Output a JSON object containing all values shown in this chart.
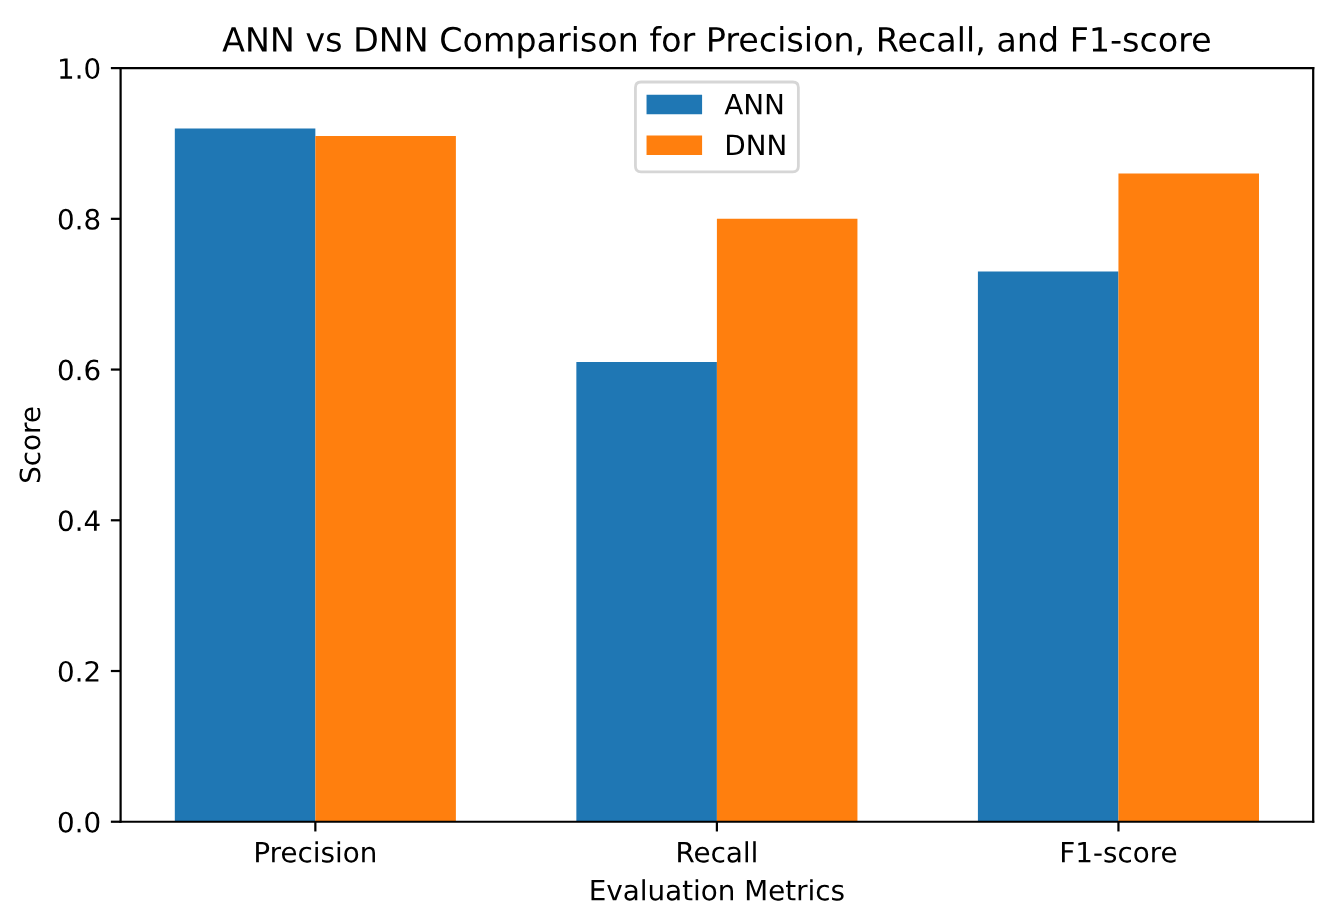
{
  "chart_data": {
    "type": "bar",
    "title": "ANN vs DNN Comparison for Precision, Recall, and F1-score",
    "xlabel": "Evaluation Metrics",
    "ylabel": "Score",
    "categories": [
      "Precision",
      "Recall",
      "F1-score"
    ],
    "series": [
      {
        "name": "ANN",
        "color": "#1f77b4",
        "values": [
          0.92,
          0.61,
          0.73
        ]
      },
      {
        "name": "DNN",
        "color": "#ff7f0e",
        "values": [
          0.91,
          0.8,
          0.86
        ]
      }
    ],
    "ylim": [
      0,
      1.0
    ],
    "yticks": [
      {
        "value": 0,
        "label": "0.0"
      },
      {
        "value": 0.2,
        "label": "0.2"
      },
      {
        "value": 0.4,
        "label": "0.4"
      },
      {
        "value": 0.6,
        "label": "0.6"
      },
      {
        "value": 0.8,
        "label": "0.8"
      },
      {
        "value": 1.0,
        "label": "1.0"
      }
    ],
    "legend": "top"
  }
}
